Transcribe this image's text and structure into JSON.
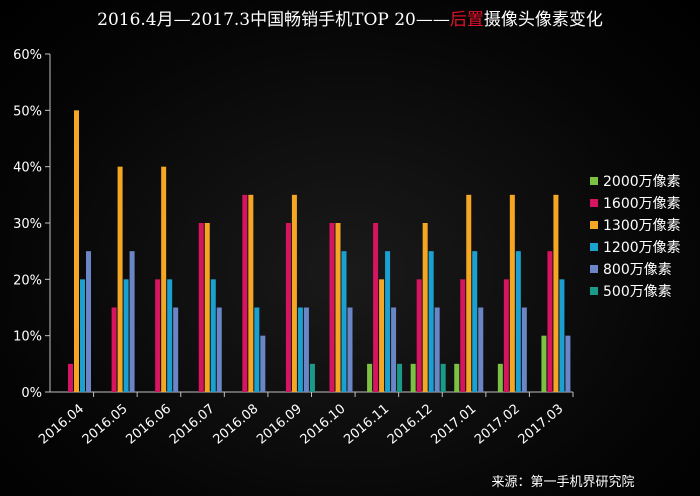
{
  "chart_data": {
    "type": "bar",
    "title": {
      "prefix": "2016.4月—2017.3中国畅销手机TOP 20——",
      "highlight": "后置",
      "suffix": "摄像头像素变化"
    },
    "colors": {
      "title": "#ffffff",
      "highlight": "#e0102b",
      "axis": "#bfbfbf",
      "text": "#ffffff"
    },
    "categories": [
      "2016.04",
      "2016.05",
      "2016.06",
      "2016.07",
      "2016.08",
      "2016.09",
      "2016.10",
      "2016.11",
      "2016.12",
      "2017.01",
      "2017.02",
      "2017.03"
    ],
    "series": [
      {
        "name": "2000万像素",
        "color": "#7cc242",
        "values": [
          0,
          0,
          0,
          0,
          0,
          0,
          0,
          5,
          5,
          5,
          5,
          10
        ]
      },
      {
        "name": "1600万像素",
        "color": "#d6145f",
        "values": [
          5,
          15,
          20,
          30,
          35,
          30,
          30,
          30,
          20,
          20,
          20,
          25
        ]
      },
      {
        "name": "1300万像素",
        "color": "#f5a623",
        "values": [
          50,
          40,
          40,
          30,
          35,
          35,
          30,
          20,
          30,
          35,
          35,
          35
        ]
      },
      {
        "name": "1200万像素",
        "color": "#1aa1d2",
        "values": [
          20,
          20,
          20,
          20,
          15,
          15,
          25,
          25,
          25,
          25,
          25,
          20
        ]
      },
      {
        "name": "800万像素",
        "color": "#6b86c7",
        "values": [
          25,
          25,
          15,
          15,
          10,
          15,
          15,
          15,
          15,
          15,
          15,
          10
        ]
      },
      {
        "name": "500万像素",
        "color": "#1a9b8a",
        "values": [
          0,
          0,
          0,
          0,
          0,
          5,
          0,
          5,
          5,
          0,
          0,
          0
        ]
      }
    ],
    "ylim": [
      0,
      60
    ],
    "yticks": [
      "0%",
      "10%",
      "20%",
      "30%",
      "40%",
      "50%",
      "60%"
    ],
    "legend_position": "right",
    "grid": false
  },
  "source": "来源：第一手机界研究院"
}
